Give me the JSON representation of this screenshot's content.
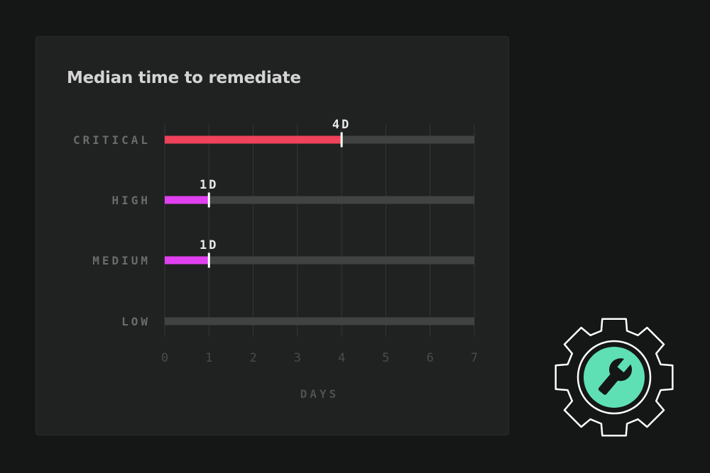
{
  "chart_data": {
    "type": "bar",
    "title": "Median time to remediate",
    "xlabel": "DAYS",
    "ylabel": "",
    "xlim": [
      0,
      7
    ],
    "x_ticks": [
      "0",
      "1",
      "2",
      "3",
      "4",
      "5",
      "6",
      "7"
    ],
    "categories": [
      "CRITICAL",
      "HIGH",
      "MEDIUM",
      "LOW"
    ],
    "values": [
      4,
      1,
      1,
      0
    ],
    "value_labels": [
      "4D",
      "1D",
      "1D",
      ""
    ],
    "bar_colors": [
      "#f0425a",
      "#e040f0",
      "#e040f0",
      "#e040f0"
    ],
    "track_color": "#414242",
    "grid": true
  },
  "icon": {
    "name": "gear-wrench-icon",
    "accent": "#5ee0b4"
  }
}
